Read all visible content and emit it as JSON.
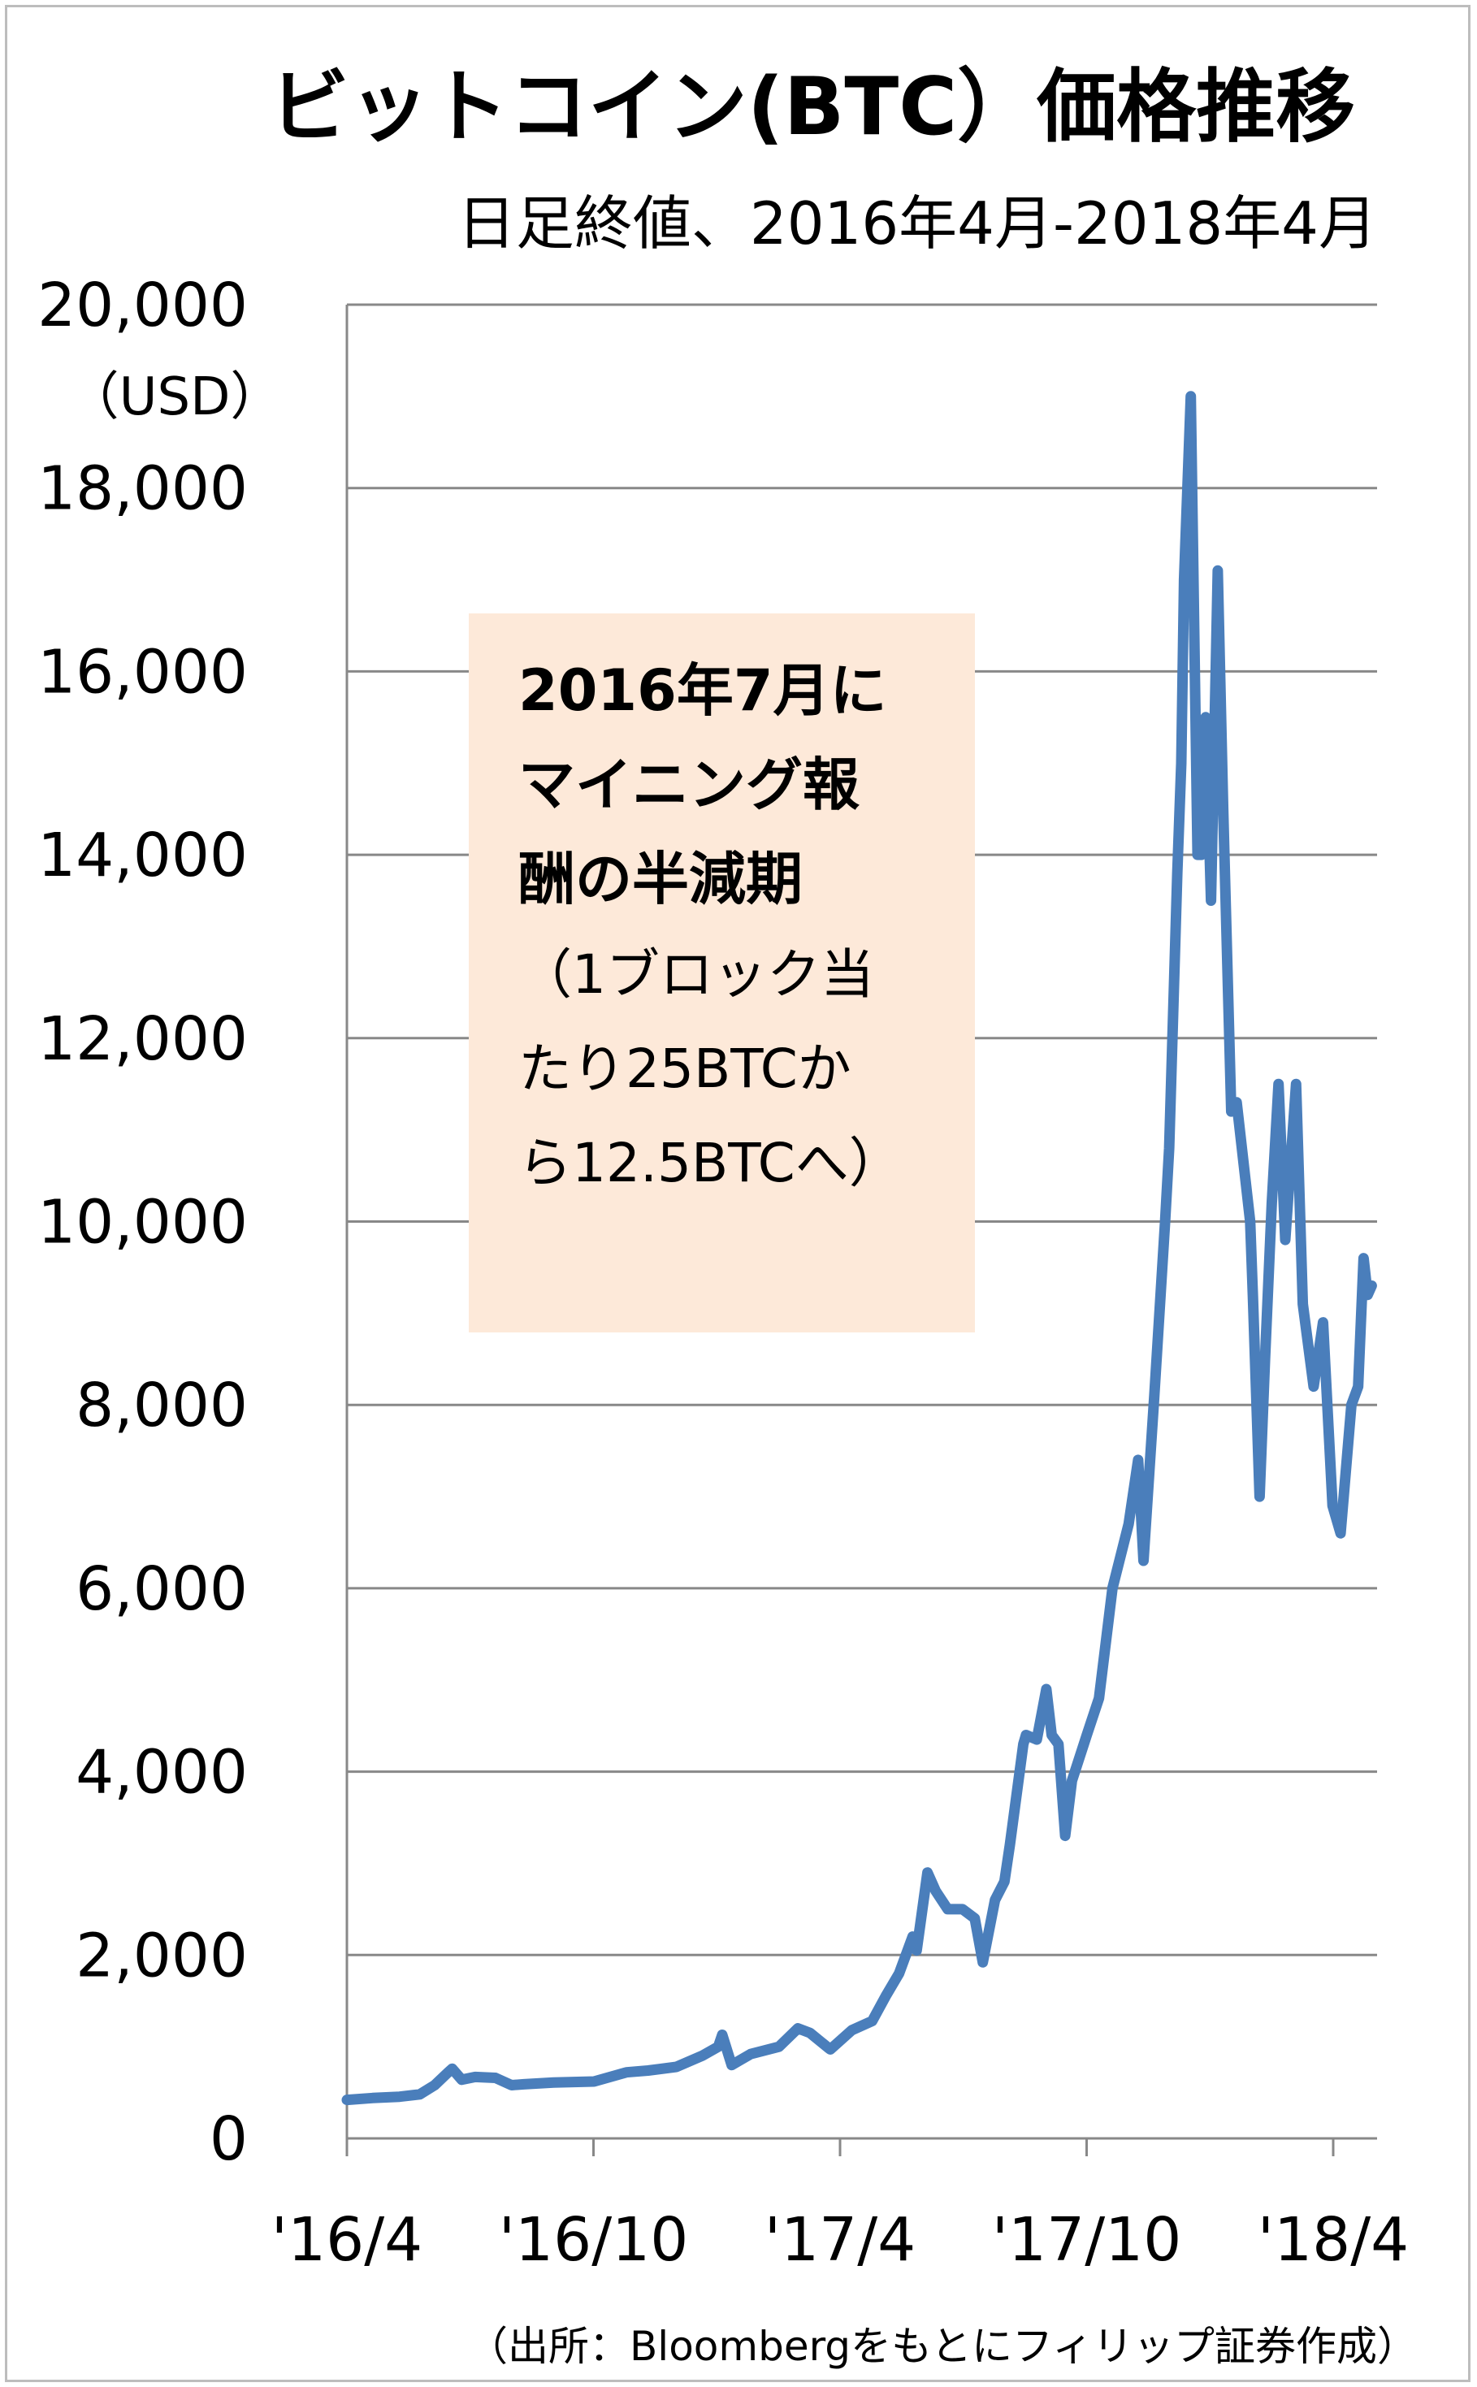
{
  "chart_data": {
    "type": "line",
    "title": "ビットコイン(BTC）価格推移",
    "subtitle": "日足終値、2016年4月-2018年4月",
    "ylabel": "",
    "y_unit": "（USD）",
    "ylim": [
      0,
      20000
    ],
    "y_ticks": [
      "0",
      "2,000",
      "4,000",
      "6,000",
      "8,000",
      "10,000",
      "12,000",
      "14,000",
      "16,000",
      "18,000",
      "20,000"
    ],
    "x_ticks": [
      "'16/4",
      "'16/10",
      "'17/4",
      "'17/10",
      "'18/4"
    ],
    "grid": true,
    "source": "（出所：Bloombergをもとにフィリップ証券作成）",
    "annotation": {
      "bold_lines": [
        "2016年7月に",
        "マイニング報",
        "酬の半減期"
      ],
      "lines": [
        "（1ブロック当",
        "たり25BTCか",
        "ら12.5BTCへ）"
      ]
    },
    "colors": {
      "line": "#4a7ebb",
      "annotation_bg": "#fde9d9",
      "grid": "#888888"
    },
    "series": [
      {
        "x": [
          "2016-04-01",
          "2016-04-20",
          "2016-05-10",
          "2016-05-25",
          "2016-06-05",
          "2016-06-15",
          "2016-06-18",
          "2016-06-25",
          "2016-07-05",
          "2016-07-20",
          "2016-08-01",
          "2016-08-10",
          "2016-09-01",
          "2016-10-01",
          "2016-10-25",
          "2016-11-10",
          "2016-12-01",
          "2016-12-20",
          "2017-01-01",
          "2017-01-04",
          "2017-01-11",
          "2017-01-25",
          "2017-02-15",
          "2017-03-01",
          "2017-03-10",
          "2017-03-25",
          "2017-04-10",
          "2017-04-25",
          "2017-05-05",
          "2017-05-15",
          "2017-05-25",
          "2017-05-28",
          "2017-06-05",
          "2017-06-11",
          "2017-06-20",
          "2017-07-01",
          "2017-07-10",
          "2017-07-16",
          "2017-07-25",
          "2017-08-01",
          "2017-08-05",
          "2017-08-15",
          "2017-08-17",
          "2017-08-25",
          "2017-09-01",
          "2017-09-05",
          "2017-09-10",
          "2017-09-15",
          "2017-09-20",
          "2017-10-01",
          "2017-10-10",
          "2017-10-20",
          "2017-11-01",
          "2017-11-08",
          "2017-11-12",
          "2017-11-20",
          "2017-11-28",
          "2017-12-01",
          "2017-12-07",
          "2017-12-10",
          "2017-12-12",
          "2017-12-17",
          "2017-12-22",
          "2017-12-25",
          "2017-12-28",
          "2018-01-01",
          "2018-01-06",
          "2018-01-10",
          "2018-01-16",
          "2018-01-20",
          "2018-01-30",
          "2018-02-01",
          "2018-02-06",
          "2018-02-10",
          "2018-02-15",
          "2018-02-20",
          "2018-02-25",
          "2018-03-05",
          "2018-03-10",
          "2018-03-18",
          "2018-03-25",
          "2018-04-01",
          "2018-04-07",
          "2018-04-15",
          "2018-04-20",
          "2018-04-24",
          "2018-04-27",
          "2018-04-30"
        ],
        "y": [
          420,
          440,
          455,
          480,
          580,
          720,
          760,
          640,
          670,
          660,
          580,
          590,
          610,
          620,
          720,
          740,
          780,
          900,
          1000,
          1130,
          800,
          920,
          1000,
          1200,
          1150,
          970,
          1180,
          1280,
          1550,
          1800,
          2200,
          2050,
          2900,
          2700,
          2500,
          2500,
          2400,
          1920,
          2600,
          2800,
          3200,
          4300,
          4400,
          4350,
          4900,
          4400,
          4300,
          3300,
          3900,
          4400,
          4800,
          6000,
          6700,
          7400,
          6300,
          8100,
          10000,
          10800,
          13800,
          15000,
          17000,
          19000,
          14000,
          14000,
          15500,
          13500,
          17100,
          14500,
          11200,
          11300,
          10000,
          9200,
          7000,
          8500,
          10200,
          11500,
          9800,
          11500,
          9100,
          8200,
          8900,
          6900,
          6600,
          8000,
          8200,
          9600,
          9200,
          9300
        ]
      }
    ]
  }
}
